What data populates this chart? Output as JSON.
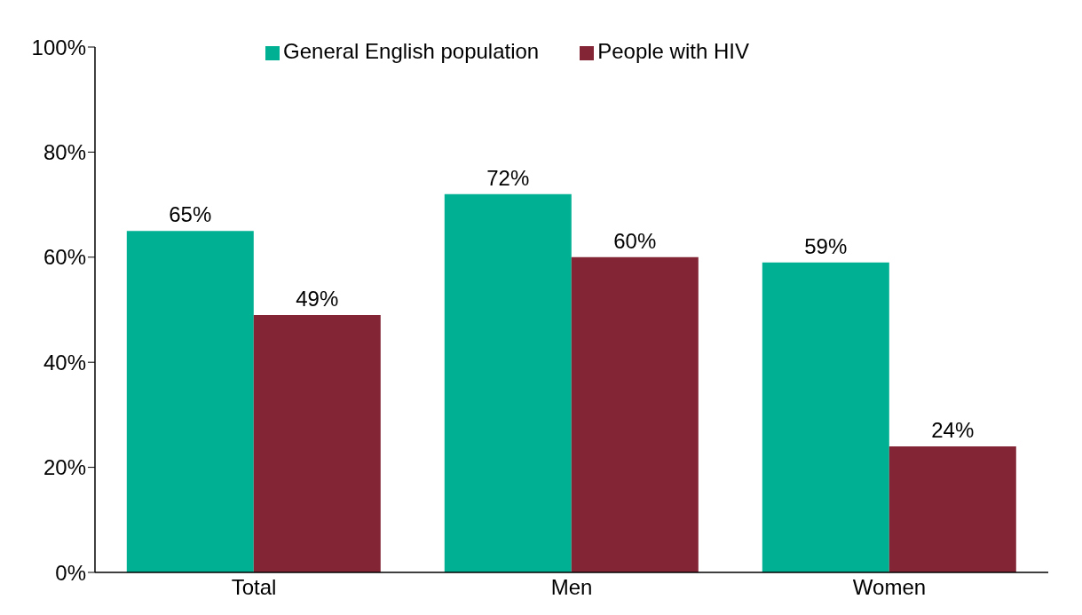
{
  "chart_data": {
    "type": "bar",
    "categories": [
      "Total",
      "Men",
      "Women"
    ],
    "series": [
      {
        "name": "General English population",
        "color": "#00b092",
        "values": [
          65,
          72,
          59
        ],
        "value_labels": [
          "65%",
          "72%",
          "59%"
        ]
      },
      {
        "name": "People with HIV",
        "color": "#832535",
        "values": [
          49,
          60,
          24
        ],
        "value_labels": [
          "49%",
          "60%",
          "24%"
        ]
      }
    ],
    "ylim": [
      0,
      100
    ],
    "yticks": [
      {
        "value": 0,
        "label": "0%"
      },
      {
        "value": 20,
        "label": "20%"
      },
      {
        "value": 40,
        "label": "40%"
      },
      {
        "value": 60,
        "label": "60%"
      },
      {
        "value": 80,
        "label": "80%"
      },
      {
        "value": 100,
        "label": "100%"
      }
    ],
    "grid": false,
    "legend": "top"
  }
}
